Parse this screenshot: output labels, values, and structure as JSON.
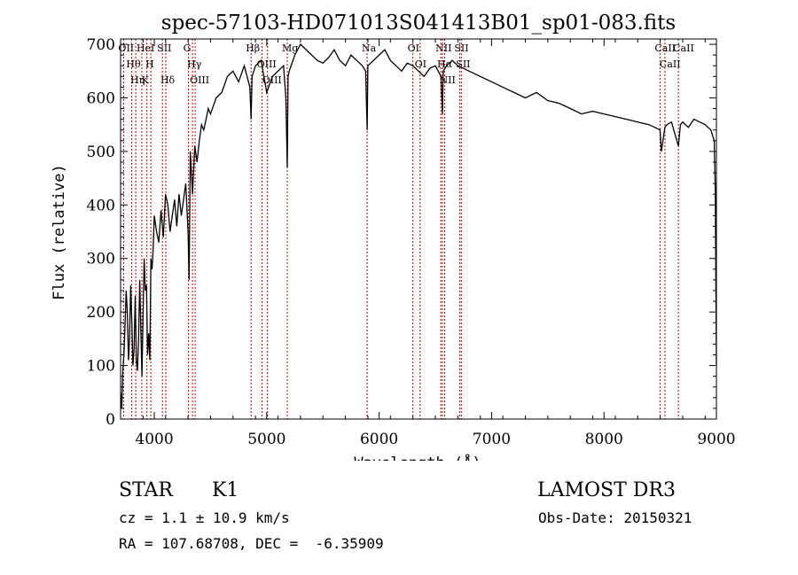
{
  "chart_data": {
    "type": "line",
    "title": "spec-57103-HD071013S041413B01_sp01-083.fits",
    "xlabel": "Wavelength (Å)",
    "ylabel": "Flux (relative)",
    "xlim": [
      3700,
      9000
    ],
    "ylim": [
      0,
      710
    ],
    "xticks": [
      4000,
      5000,
      6000,
      7000,
      8000,
      9000
    ],
    "yticks": [
      0,
      100,
      200,
      300,
      400,
      500,
      600,
      700
    ],
    "series": [
      {
        "name": "flux",
        "x": [
          3700,
          3710,
          3720,
          3730,
          3740,
          3750,
          3760,
          3770,
          3780,
          3790,
          3800,
          3810,
          3820,
          3830,
          3840,
          3850,
          3860,
          3870,
          3880,
          3890,
          3900,
          3910,
          3920,
          3930,
          3940,
          3950,
          3960,
          3970,
          3980,
          3990,
          4000,
          4020,
          4040,
          4060,
          4080,
          4100,
          4120,
          4140,
          4160,
          4180,
          4200,
          4220,
          4240,
          4260,
          4280,
          4300,
          4310,
          4320,
          4340,
          4360,
          4380,
          4400,
          4420,
          4440,
          4460,
          4480,
          4500,
          4550,
          4600,
          4650,
          4700,
          4750,
          4800,
          4850,
          4861,
          4870,
          4900,
          4950,
          5000,
          5050,
          5100,
          5150,
          5170,
          5183,
          5190,
          5200,
          5250,
          5300,
          5350,
          5400,
          5450,
          5500,
          5550,
          5600,
          5650,
          5700,
          5750,
          5800,
          5850,
          5880,
          5893,
          5900,
          5950,
          6000,
          6050,
          6100,
          6150,
          6200,
          6250,
          6300,
          6350,
          6400,
          6450,
          6500,
          6550,
          6563,
          6570,
          6600,
          6650,
          6700,
          6750,
          6800,
          6850,
          6900,
          6950,
          7000,
          7100,
          7200,
          7300,
          7400,
          7500,
          7600,
          7700,
          7800,
          7900,
          8000,
          8100,
          8200,
          8300,
          8400,
          8450,
          8498,
          8510,
          8542,
          8560,
          8600,
          8662,
          8680,
          8700,
          8750,
          8800,
          8850,
          8900,
          8950,
          8980,
          8990,
          9000
        ],
        "values": [
          50,
          20,
          90,
          120,
          180,
          240,
          200,
          110,
          150,
          250,
          180,
          100,
          130,
          230,
          110,
          90,
          150,
          260,
          170,
          80,
          200,
          300,
          240,
          250,
          120,
          160,
          110,
          300,
          280,
          320,
          380,
          350,
          330,
          390,
          340,
          420,
          400,
          350,
          380,
          410,
          360,
          420,
          380,
          410,
          440,
          350,
          260,
          500,
          420,
          510,
          480,
          520,
          550,
          540,
          560,
          580,
          570,
          600,
          610,
          640,
          650,
          630,
          660,
          620,
          560,
          640,
          660,
          670,
          610,
          640,
          650,
          660,
          600,
          470,
          640,
          650,
          680,
          700,
          690,
          680,
          670,
          665,
          675,
          690,
          670,
          660,
          680,
          670,
          660,
          650,
          540,
          660,
          670,
          680,
          690,
          670,
          660,
          650,
          665,
          660,
          650,
          640,
          655,
          660,
          640,
          570,
          650,
          660,
          670,
          660,
          655,
          650,
          645,
          640,
          635,
          630,
          620,
          610,
          600,
          610,
          595,
          590,
          580,
          570,
          575,
          570,
          565,
          560,
          555,
          550,
          545,
          540,
          500,
          545,
          550,
          555,
          510,
          550,
          555,
          545,
          560,
          555,
          550,
          540,
          520,
          430,
          100
        ]
      }
    ],
    "line_groups": [
      {
        "x": 3727,
        "labels": [
          "OII"
        ]
      },
      {
        "x": 3798,
        "labels": [
          "Hθ"
        ]
      },
      {
        "x": 3835,
        "labels": [
          "Hη"
        ]
      },
      {
        "x": 3889,
        "labels": [
          "HeI"
        ]
      },
      {
        "x": 3934,
        "labels": [
          "K"
        ]
      },
      {
        "x": 3969,
        "labels": [
          "H"
        ]
      },
      {
        "x": 4072,
        "labels": [
          "SII"
        ]
      },
      {
        "x": 4102,
        "labels": [
          "Hδ"
        ]
      },
      {
        "x": 4304,
        "labels": [
          "G"
        ]
      },
      {
        "x": 4340,
        "labels": [
          "Hγ"
        ]
      },
      {
        "x": 4363,
        "labels": [
          "OIII"
        ]
      },
      {
        "x": 4861,
        "labels": [
          "Hβ"
        ]
      },
      {
        "x": 4959,
        "labels": [
          "OIII"
        ]
      },
      {
        "x": 5007,
        "labels": [
          "OIII"
        ]
      },
      {
        "x": 5183,
        "labels": [
          "Mg"
        ]
      },
      {
        "x": 5893,
        "labels": [
          "Na"
        ]
      },
      {
        "x": 6300,
        "labels": [
          "OI"
        ]
      },
      {
        "x": 6364,
        "labels": [
          "OI"
        ]
      },
      {
        "x": 6548,
        "labels": [
          "NII"
        ]
      },
      {
        "x": 6563,
        "labels": [
          "Hα"
        ]
      },
      {
        "x": 6583,
        "labels": [
          "NII"
        ]
      },
      {
        "x": 6716,
        "labels": [
          "SII"
        ]
      },
      {
        "x": 6731,
        "labels": [
          "SII"
        ]
      },
      {
        "x": 8498,
        "labels": [
          "CaII"
        ]
      },
      {
        "x": 8542,
        "labels": [
          "CaII"
        ]
      },
      {
        "x": 8662,
        "labels": [
          "CaII"
        ]
      }
    ],
    "line_color": "#b40000"
  },
  "info": {
    "class_label": "STAR",
    "subclass_label": "K1",
    "survey": "LAMOST DR3",
    "cz": "cz = 1.1 ± 10.9 km/s",
    "obs_date": "Obs-Date: 20150321",
    "radec": "RA = 107.68708, DEC =  -6.35909"
  },
  "colors": {
    "axis": "#000000",
    "spectrum": "#000000",
    "lines": "#b40000"
  }
}
